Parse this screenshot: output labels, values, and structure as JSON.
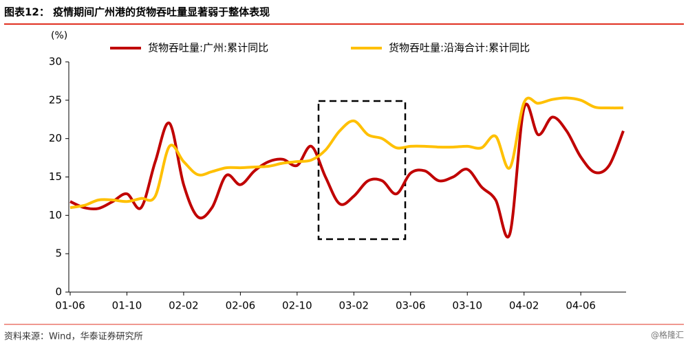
{
  "chart_data": {
    "type": "line",
    "title": "图表12：  疫情期间广州港的货物吞吐量显著弱于整体表现",
    "y_label": "(%)",
    "source": "资料来源：Wind，华泰证券研究所",
    "watermark": "@格隆汇",
    "categories": [
      "01-06",
      null,
      null,
      null,
      "01-10",
      null,
      null,
      null,
      "02-02",
      null,
      null,
      null,
      "02-06",
      null,
      null,
      null,
      "02-10",
      null,
      null,
      null,
      "03-02",
      null,
      null,
      null,
      "03-06",
      null,
      null,
      null,
      "03-10",
      null,
      null,
      null,
      "04-02",
      null,
      null,
      null,
      "04-06",
      null,
      null,
      null
    ],
    "series": [
      {
        "name": "货物吞吐量:广州:累计同比",
        "color": "#c00000",
        "values": [
          11.8,
          11,
          10.9,
          11.8,
          12.8,
          11,
          17,
          22,
          14,
          9.8,
          11,
          15.2,
          14,
          15.8,
          17,
          17.3,
          16.5,
          19,
          15,
          11.5,
          12.5,
          14.5,
          14.5,
          12.8,
          15.5,
          15.8,
          14.5,
          15,
          16,
          13.7,
          12,
          7.6,
          24,
          20.5,
          22.8,
          21,
          17.6,
          15.6,
          16.5,
          21
        ]
      },
      {
        "name": "货物吞吐量:沿海合计:累计同比",
        "color": "#ffc000",
        "values": [
          11,
          11.3,
          12,
          12,
          11.8,
          12.2,
          12.5,
          19,
          17,
          15.3,
          15.7,
          16.2,
          16.2,
          16.3,
          16.4,
          16.8,
          17,
          17.2,
          18.5,
          21,
          22.3,
          20.5,
          20,
          18.8,
          19,
          19,
          18.9,
          18.9,
          19,
          18.8,
          20.3,
          16.2,
          24.7,
          24.6,
          25.1,
          25.3,
          25,
          24.1,
          24,
          24
        ]
      }
    ],
    "ylim": [
      0,
      30
    ],
    "yticks": [
      0,
      5,
      10,
      15,
      20,
      25,
      30
    ],
    "grid": false
  }
}
